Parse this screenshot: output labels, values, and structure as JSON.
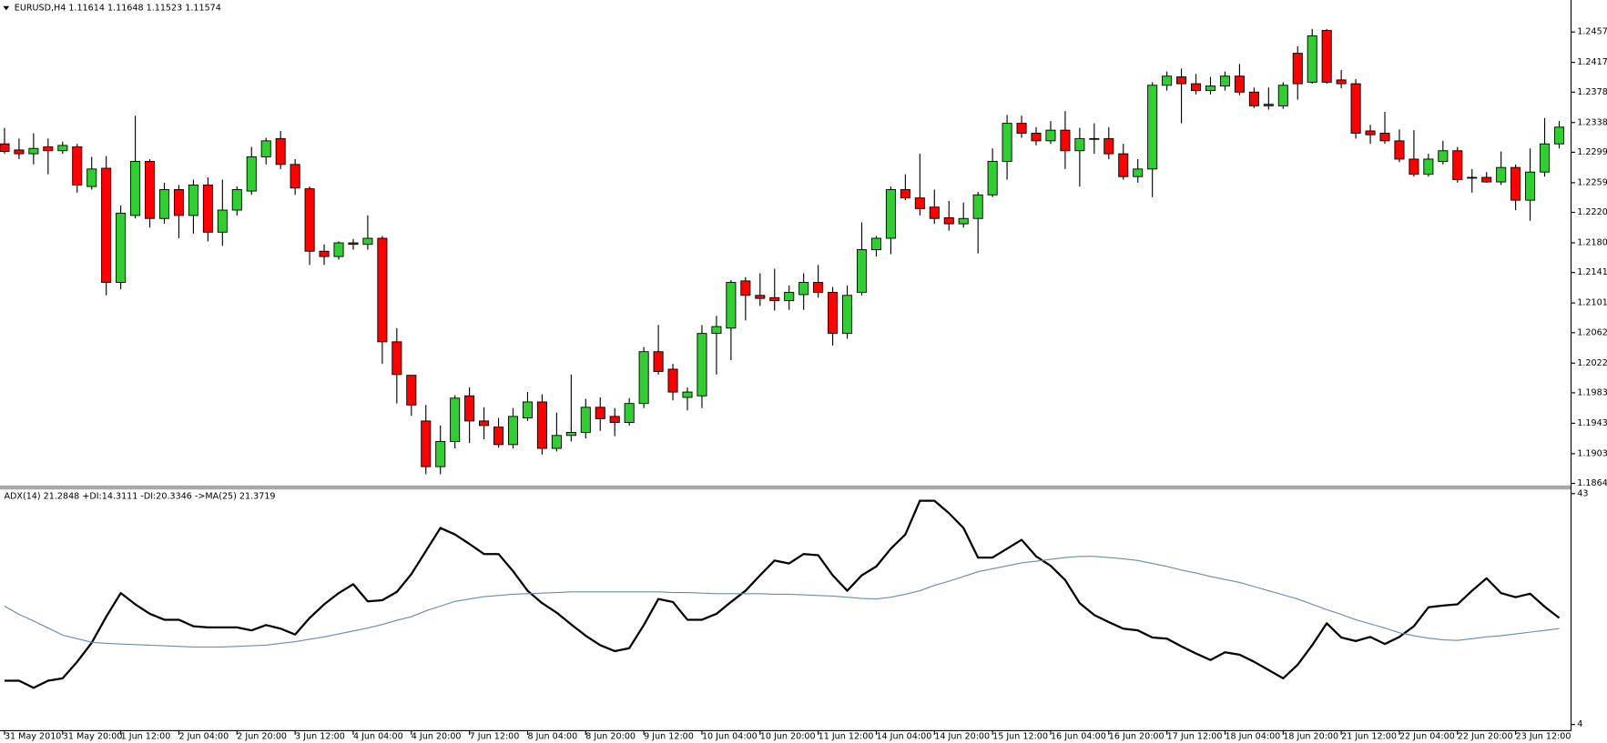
{
  "chart_data": [
    {
      "type": "candlestick",
      "title": "EURUSD,H4  1.11614 1.11648 1.11523 1.11574",
      "up_color": "#32cd32",
      "down_color": "#ff0000",
      "wick_color": "#000000",
      "ylim": [
        1.186,
        1.2499
      ],
      "yticks": [
        {
          "value": 1.2457,
          "label": "1.24570"
        },
        {
          "value": 1.2417,
          "label": "1.24170"
        },
        {
          "value": 1.2378,
          "label": "1.23780"
        },
        {
          "value": 1.2338,
          "label": "1.23380"
        },
        {
          "value": 1.2299,
          "label": "1.22990"
        },
        {
          "value": 1.2259,
          "label": "1.22590"
        },
        {
          "value": 1.222,
          "label": "1.22200"
        },
        {
          "value": 1.218,
          "label": "1.21800"
        },
        {
          "value": 1.2141,
          "label": "1.21410"
        },
        {
          "value": 1.2101,
          "label": "1.21010"
        },
        {
          "value": 1.2062,
          "label": "1.20620"
        },
        {
          "value": 1.2022,
          "label": "1.20220"
        },
        {
          "value": 1.1983,
          "label": "1.19830"
        },
        {
          "value": 1.1943,
          "label": "1.19430"
        },
        {
          "value": 1.1903,
          "label": "1.19030"
        },
        {
          "value": 1.1864,
          "label": "1.18640"
        }
      ],
      "open": [
        1.231,
        1.2302,
        1.2297,
        1.2306,
        1.2301,
        1.2306,
        1.2254,
        1.2278,
        1.2128,
        1.2216,
        1.2287,
        1.2212,
        1.225,
        1.2216,
        1.2256,
        1.2194,
        1.2223,
        1.2248,
        1.2293,
        1.2317,
        1.2283,
        1.2251,
        1.2169,
        1.2162,
        1.218,
        1.2178,
        1.2186,
        1.205,
        1.2006,
        1.1946,
        1.1886,
        1.1919,
        1.1979,
        1.1946,
        1.1938,
        1.1915,
        1.195,
        1.1971,
        1.191,
        1.1927,
        1.1931,
        1.1964,
        1.1952,
        1.1944,
        1.1969,
        1.2037,
        1.2014,
        1.1977,
        1.1979,
        1.2061,
        1.2068,
        1.213,
        1.2111,
        1.2108,
        1.2104,
        1.2112,
        1.2128,
        1.2115,
        1.2061,
        1.2115,
        1.2171,
        1.2186,
        1.225,
        1.2239,
        1.2227,
        1.2213,
        1.2205,
        1.2212,
        1.2243,
        1.2287,
        1.2337,
        1.2324,
        1.2314,
        1.2328,
        1.2301,
        1.2317,
        1.2317,
        1.2297,
        1.2267,
        1.2277,
        1.2387,
        1.2398,
        1.2389,
        1.238,
        1.2386,
        1.2399,
        1.2378,
        1.2362,
        1.236,
        1.2429,
        1.2391,
        1.2459,
        1.2394,
        1.2389,
        1.2327,
        1.2324,
        1.2314,
        1.229,
        1.227,
        1.2287,
        1.2301,
        1.2266,
        1.2266,
        1.226,
        1.2279,
        1.2236,
        1.2273,
        1.231
      ],
      "high": [
        1.2331,
        1.2317,
        1.2324,
        1.2317,
        1.2313,
        1.231,
        1.2293,
        1.2294,
        1.2229,
        1.2347,
        1.229,
        1.2259,
        1.2256,
        1.2263,
        1.2266,
        1.2263,
        1.2254,
        1.2306,
        1.2318,
        1.2327,
        1.229,
        1.2254,
        1.2178,
        1.2182,
        1.2185,
        1.2216,
        1.2189,
        1.2068,
        1.2006,
        1.1967,
        1.194,
        1.198,
        1.199,
        1.1964,
        1.195,
        1.1963,
        1.1984,
        1.1981,
        1.1957,
        1.2007,
        1.1975,
        1.1977,
        1.1963,
        1.1976,
        1.2043,
        1.2072,
        1.2021,
        1.199,
        1.2072,
        1.2084,
        1.2131,
        1.2135,
        1.214,
        1.2146,
        1.2124,
        1.214,
        1.2151,
        1.2122,
        1.2124,
        1.2207,
        1.2189,
        1.2254,
        1.227,
        1.2297,
        1.225,
        1.2235,
        1.2233,
        1.2247,
        1.2304,
        1.2348,
        1.2347,
        1.2332,
        1.234,
        1.2353,
        1.2331,
        1.2337,
        1.2332,
        1.231,
        1.229,
        1.2391,
        1.2405,
        1.2409,
        1.2402,
        1.2398,
        1.2405,
        1.2415,
        1.2384,
        1.2384,
        1.2391,
        1.2438,
        1.2461,
        1.2461,
        1.2407,
        1.2395,
        1.2335,
        1.2352,
        1.2329,
        1.2328,
        1.2297,
        1.2314,
        1.2306,
        1.2277,
        1.2273,
        1.23,
        1.2283,
        1.2304,
        1.2344,
        1.234
      ],
      "low": [
        1.2297,
        1.229,
        1.2283,
        1.227,
        1.2297,
        1.2246,
        1.225,
        1.2111,
        1.2119,
        1.2212,
        1.22,
        1.2205,
        1.2186,
        1.2192,
        1.2182,
        1.2176,
        1.2216,
        1.2243,
        1.2283,
        1.2277,
        1.2243,
        1.2151,
        1.2151,
        1.2158,
        1.2171,
        1.2171,
        1.2021,
        1.1969,
        1.1953,
        1.1876,
        1.1876,
        1.191,
        1.1917,
        1.1922,
        1.1911,
        1.191,
        1.1946,
        1.1902,
        1.1906,
        1.1919,
        1.1923,
        1.1933,
        1.1926,
        1.194,
        1.1963,
        1.2007,
        1.1973,
        1.196,
        1.1963,
        1.2007,
        1.2026,
        1.2078,
        1.2097,
        1.2091,
        1.2092,
        1.2092,
        1.2108,
        1.2045,
        1.2054,
        1.2111,
        1.2162,
        1.2165,
        1.2236,
        1.2216,
        1.2205,
        1.2196,
        1.22,
        1.2166,
        1.224,
        1.2263,
        1.2318,
        1.2308,
        1.231,
        1.2277,
        1.2254,
        1.2297,
        1.229,
        1.2263,
        1.2259,
        1.224,
        1.238,
        1.2337,
        1.2375,
        1.2375,
        1.238,
        1.2374,
        1.2357,
        1.2355,
        1.2356,
        1.2368,
        1.2389,
        1.2389,
        1.2383,
        1.2317,
        1.231,
        1.231,
        1.2286,
        1.2267,
        1.2267,
        1.2283,
        1.2259,
        1.2246,
        1.2259,
        1.2256,
        1.2223,
        1.2209,
        1.2267,
        1.2304
      ],
      "close": [
        1.23,
        1.2297,
        1.2304,
        1.2301,
        1.2308,
        1.2256,
        1.2277,
        1.2128,
        1.2219,
        1.2287,
        1.2212,
        1.225,
        1.2216,
        1.2256,
        1.2194,
        1.2223,
        1.225,
        1.2293,
        1.2314,
        1.2283,
        1.2252,
        1.2169,
        1.2162,
        1.218,
        1.2178,
        1.2186,
        1.205,
        1.2007,
        1.1967,
        1.1886,
        1.1919,
        1.1976,
        1.1946,
        1.194,
        1.1915,
        1.1952,
        1.1971,
        1.191,
        1.1927,
        1.1931,
        1.1964,
        1.1949,
        1.1944,
        1.1969,
        1.2037,
        1.2011,
        1.1984,
        1.1984,
        1.2061,
        1.207,
        1.2128,
        1.2111,
        1.2107,
        1.2104,
        1.2115,
        1.2128,
        1.2115,
        1.2061,
        1.2111,
        1.2171,
        1.2186,
        1.225,
        1.2239,
        1.2225,
        1.2212,
        1.2205,
        1.2212,
        1.2243,
        1.2287,
        1.2337,
        1.2324,
        1.2314,
        1.2328,
        1.2301,
        1.2317,
        1.2317,
        1.2297,
        1.2267,
        1.2277,
        1.2387,
        1.2399,
        1.2389,
        1.238,
        1.2386,
        1.2399,
        1.2378,
        1.236,
        1.236,
        1.2387,
        1.2389,
        1.2452,
        1.2391,
        1.2389,
        1.2324,
        1.2322,
        1.2314,
        1.229,
        1.227,
        1.229,
        1.2301,
        1.2263,
        1.2266,
        1.226,
        1.2279,
        1.2236,
        1.2273,
        1.231,
        1.2332
      ]
    },
    {
      "type": "line",
      "title": "ADX(14) 21.2848 +DI:14.3111 -DI:20.3346  ->MA(25) 21.3719",
      "ylim": [
        4,
        43
      ],
      "yticks": [
        43,
        4
      ],
      "categories": [
        "31 May 2010",
        null,
        null,
        null,
        "31 May 20:00",
        null,
        null,
        null,
        "1 Jun 12:00",
        null,
        null,
        null,
        "2 Jun 04:00",
        null,
        null,
        null,
        "2 Jun 20:00",
        null,
        null,
        null,
        "3 Jun 12:00",
        null,
        null,
        null,
        "4 Jun 04:00",
        null,
        null,
        null,
        "4 Jun 20:00",
        null,
        null,
        null,
        "7 Jun 12:00",
        null,
        null,
        null,
        "8 Jun 04:00",
        null,
        null,
        null,
        "8 Jun 20:00",
        null,
        null,
        null,
        "9 Jun 12:00",
        null,
        null,
        null,
        "10 Jun 04:00",
        null,
        null,
        null,
        "10 Jun 20:00",
        null,
        null,
        null,
        "11 Jun 12:00",
        null,
        null,
        null,
        "14 Jun 04:00",
        null,
        null,
        null,
        "14 Jun 20:00",
        null,
        null,
        null,
        "15 Jun 12:00",
        null,
        null,
        null,
        "16 Jun 04:00",
        null,
        null,
        null,
        "16 Jun 20:00",
        null,
        null,
        null,
        "17 Jun 12:00",
        null,
        null,
        null,
        "18 Jun 04:00",
        null,
        null,
        null,
        "18 Jun 20:00",
        null,
        null,
        null,
        "21 Jun 12:00",
        null,
        null,
        null,
        "22 Jun 04:00",
        null,
        null,
        null,
        "22 Jun 20:00",
        null,
        null,
        null,
        "23 Jun 12:00",
        null,
        null,
        null
      ],
      "series": [
        {
          "color": "#000000",
          "values": [
            11.4,
            11.4,
            10.2,
            11.4,
            11.8,
            14.6,
            17.8,
            22.2,
            26.2,
            24.3,
            22.7,
            21.7,
            21.7,
            20.6,
            20.4,
            20.4,
            20.4,
            19.9,
            20.8,
            20.2,
            19.2,
            22.0,
            24.3,
            26.2,
            27.7,
            24.8,
            25.0,
            26.4,
            29.4,
            33.3,
            37.2,
            36.1,
            34.5,
            32.8,
            32.8,
            29.9,
            26.6,
            24.5,
            22.9,
            20.9,
            19.0,
            17.4,
            16.4,
            16.9,
            20.8,
            25.2,
            24.7,
            21.7,
            21.7,
            22.7,
            24.7,
            26.6,
            29.2,
            31.7,
            31.2,
            32.8,
            32.6,
            29.2,
            26.6,
            29.2,
            30.7,
            33.7,
            36.1,
            41.8,
            41.8,
            39.7,
            37.2,
            32.2,
            32.2,
            33.7,
            35.2,
            32.4,
            30.8,
            28.4,
            24.5,
            22.5,
            21.3,
            20.2,
            19.9,
            18.7,
            18.5,
            17.2,
            16.0,
            14.9,
            16.2,
            15.8,
            14.6,
            13.2,
            11.8,
            14.1,
            17.4,
            21.1,
            18.7,
            18.1,
            18.8,
            17.6,
            18.8,
            20.6,
            23.8,
            24.1,
            24.3,
            26.6,
            28.7,
            26.2,
            25.5,
            26.1,
            23.9,
            22.0
          ]
        },
        {
          "color": "#6a8bb0",
          "values": [
            24.0,
            22.6,
            21.5,
            20.3,
            19.1,
            18.5,
            17.9,
            17.7,
            17.6,
            17.5,
            17.4,
            17.3,
            17.2,
            17.1,
            17.1,
            17.1,
            17.2,
            17.3,
            17.4,
            17.7,
            18.0,
            18.4,
            18.8,
            19.3,
            19.8,
            20.3,
            20.9,
            21.6,
            22.2,
            23.2,
            24.0,
            24.8,
            25.2,
            25.6,
            25.8,
            26.0,
            26.1,
            26.2,
            26.3,
            26.4,
            26.4,
            26.4,
            26.4,
            26.4,
            26.4,
            26.4,
            26.3,
            26.3,
            26.2,
            26.1,
            26.1,
            26.1,
            26.1,
            26.0,
            26.0,
            25.9,
            25.8,
            25.7,
            25.5,
            25.3,
            25.2,
            25.5,
            26.0,
            26.6,
            27.5,
            28.2,
            29.0,
            29.8,
            30.3,
            30.8,
            31.3,
            31.6,
            31.9,
            32.2,
            32.4,
            32.4,
            32.2,
            32.0,
            31.7,
            31.2,
            30.7,
            30.1,
            29.6,
            29.0,
            28.5,
            28.0,
            27.3,
            26.6,
            25.9,
            25.2,
            24.3,
            23.4,
            22.6,
            21.7,
            21.0,
            20.3,
            19.5,
            19.0,
            18.6,
            18.3,
            18.2,
            18.5,
            18.8,
            19.0,
            19.3,
            19.6,
            19.9,
            20.2
          ]
        }
      ]
    }
  ]
}
